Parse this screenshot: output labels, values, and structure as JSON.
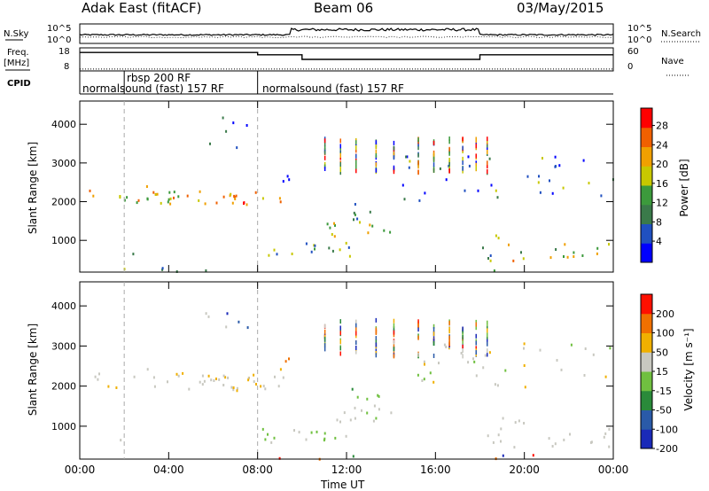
{
  "header": {
    "title": "Adak East (fitACF)",
    "beam": "Beam 06",
    "date": "03/May/2015"
  },
  "panel_labels": {
    "nsky": "N.Sky",
    "nsearch": "N.Search",
    "freq": "Freq.",
    "freq_unit": "[MHz]",
    "nave": "Nave",
    "cpid": "CPID"
  },
  "cpid_labels": [
    "normalsound (fast) 157 RF",
    "rbsp 200 RF",
    "normalsound (fast) 157 RF"
  ],
  "colors": {
    "power": [
      "#0000ff",
      "#2050c0",
      "#3a7a4a",
      "#3c9a3c",
      "#c8c800",
      "#f0a000",
      "#f06000",
      "#ff0000"
    ],
    "velocity": [
      "#1a2ab8",
      "#2a5aa8",
      "#2a8a3a",
      "#70c040",
      "#c8c8c0",
      "#f0b000",
      "#f07000",
      "#ff1000"
    ]
  },
  "chart_data": [
    {
      "type": "line",
      "name": "noise",
      "yticks": [
        "10^5",
        "10^0"
      ],
      "rticks": [
        "10^5",
        "10^0"
      ]
    },
    {
      "type": "line",
      "name": "frequency",
      "yticks": [
        "18",
        "8"
      ],
      "rticks": [
        "60",
        "0"
      ],
      "freq_segments": [
        {
          "x0": 0,
          "x1": 8.0,
          "y": 16
        },
        {
          "x0": 8.0,
          "x1": 10.0,
          "y": 15
        },
        {
          "x0": 10.0,
          "x1": 18.0,
          "y": 13
        },
        {
          "x0": 18.0,
          "x1": 24.0,
          "y": 15
        }
      ]
    },
    {
      "type": "heatmap",
      "name": "power",
      "ylabel": "Slant Range [km]",
      "yticks": [
        "4000",
        "3000",
        "2000",
        "1000"
      ],
      "ylim": [
        180,
        4600
      ],
      "colorbar_label": "Power [dB]",
      "colorbar_ticks": [
        "28",
        "24",
        "20",
        "16",
        "12",
        "8",
        "4"
      ]
    },
    {
      "type": "heatmap",
      "name": "velocity",
      "ylabel": "Slant Range [km]",
      "yticks": [
        "4000",
        "3000",
        "2000",
        "1000"
      ],
      "ylim": [
        180,
        4600
      ],
      "colorbar_label": "Velocity [m s⁻¹]",
      "colorbar_ticks": [
        "200",
        "100",
        "50",
        "15",
        "-15",
        "-50",
        "-100",
        "-200"
      ]
    }
  ],
  "xaxis": {
    "label": "Time UT",
    "ticks": [
      "00:00",
      "04:00",
      "08:00",
      "12:00",
      "16:00",
      "20:00",
      "00:00"
    ],
    "hours": [
      0,
      4,
      8,
      12,
      16,
      20,
      24
    ]
  }
}
